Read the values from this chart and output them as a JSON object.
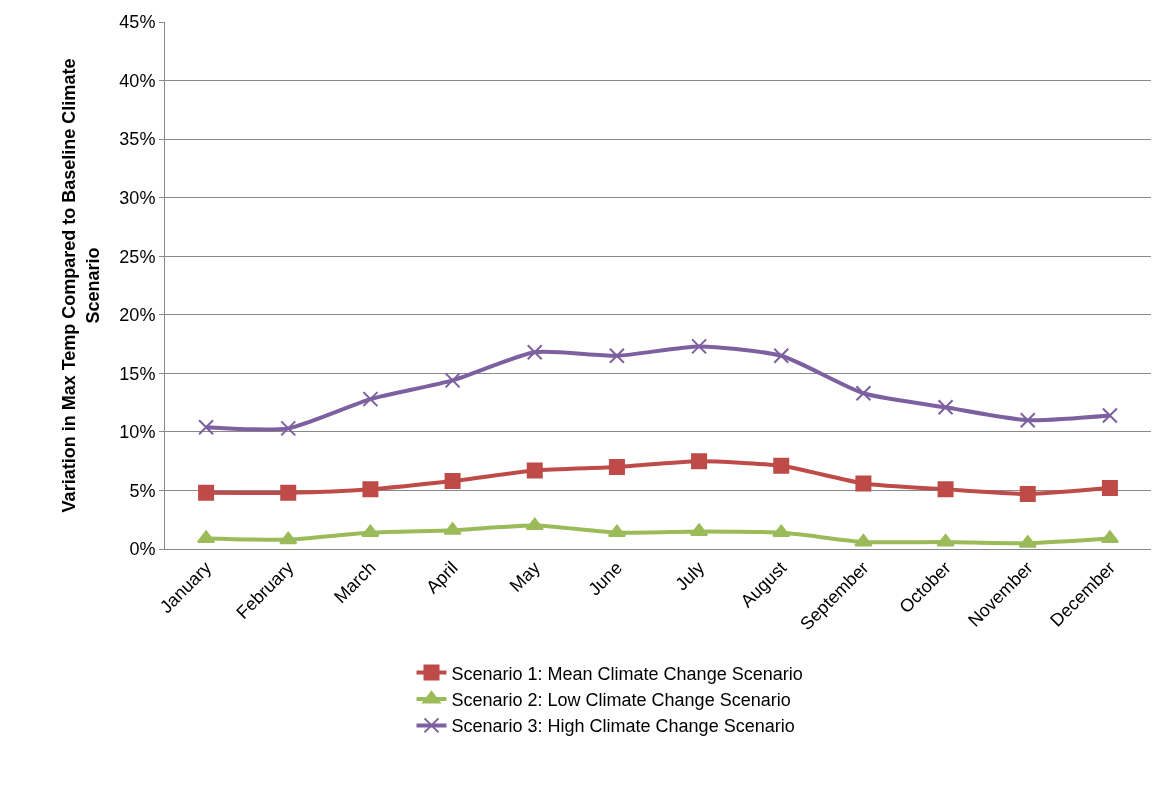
{
  "chart_data": {
    "type": "line",
    "ylabel": "Variation in Max Temp Compared to Baseline Climate Scenario",
    "categories": [
      "January",
      "February",
      "March",
      "April",
      "May",
      "June",
      "July",
      "August",
      "September",
      "October",
      "November",
      "December"
    ],
    "series": [
      {
        "name": "Scenario 1: Mean Climate Change Scenario",
        "color": "#be4b48",
        "marker": "square",
        "values": [
          4.8,
          4.8,
          5.1,
          5.8,
          6.7,
          7.0,
          7.5,
          7.1,
          5.6,
          5.1,
          4.7,
          5.2
        ]
      },
      {
        "name": "Scenario 2: Low Climate Change Scenario",
        "color": "#9bbb59",
        "marker": "triangle",
        "values": [
          0.9,
          0.8,
          1.4,
          1.6,
          2.0,
          1.4,
          1.5,
          1.4,
          0.6,
          0.6,
          0.5,
          0.9
        ]
      },
      {
        "name": "Scenario 3: High Climate Change Scenario",
        "color": "#7d60a0",
        "marker": "cross",
        "values": [
          10.4,
          10.3,
          12.8,
          14.4,
          16.8,
          16.5,
          17.3,
          16.5,
          13.3,
          12.1,
          11.0,
          11.4
        ]
      }
    ],
    "ylim": [
      0,
      45
    ],
    "yticks": [
      {
        "value": 0,
        "label": "0%"
      },
      {
        "value": 5,
        "label": "5%"
      },
      {
        "value": 10,
        "label": "10%"
      },
      {
        "value": 15,
        "label": "15%"
      },
      {
        "value": 20,
        "label": "20%"
      },
      {
        "value": 25,
        "label": "25%"
      },
      {
        "value": 30,
        "label": "30%"
      },
      {
        "value": 35,
        "label": "35%"
      },
      {
        "value": 40,
        "label": "40%"
      },
      {
        "value": 45,
        "label": "45%"
      }
    ],
    "grid": "y",
    "legend": "bottom",
    "line_style": "solid"
  }
}
